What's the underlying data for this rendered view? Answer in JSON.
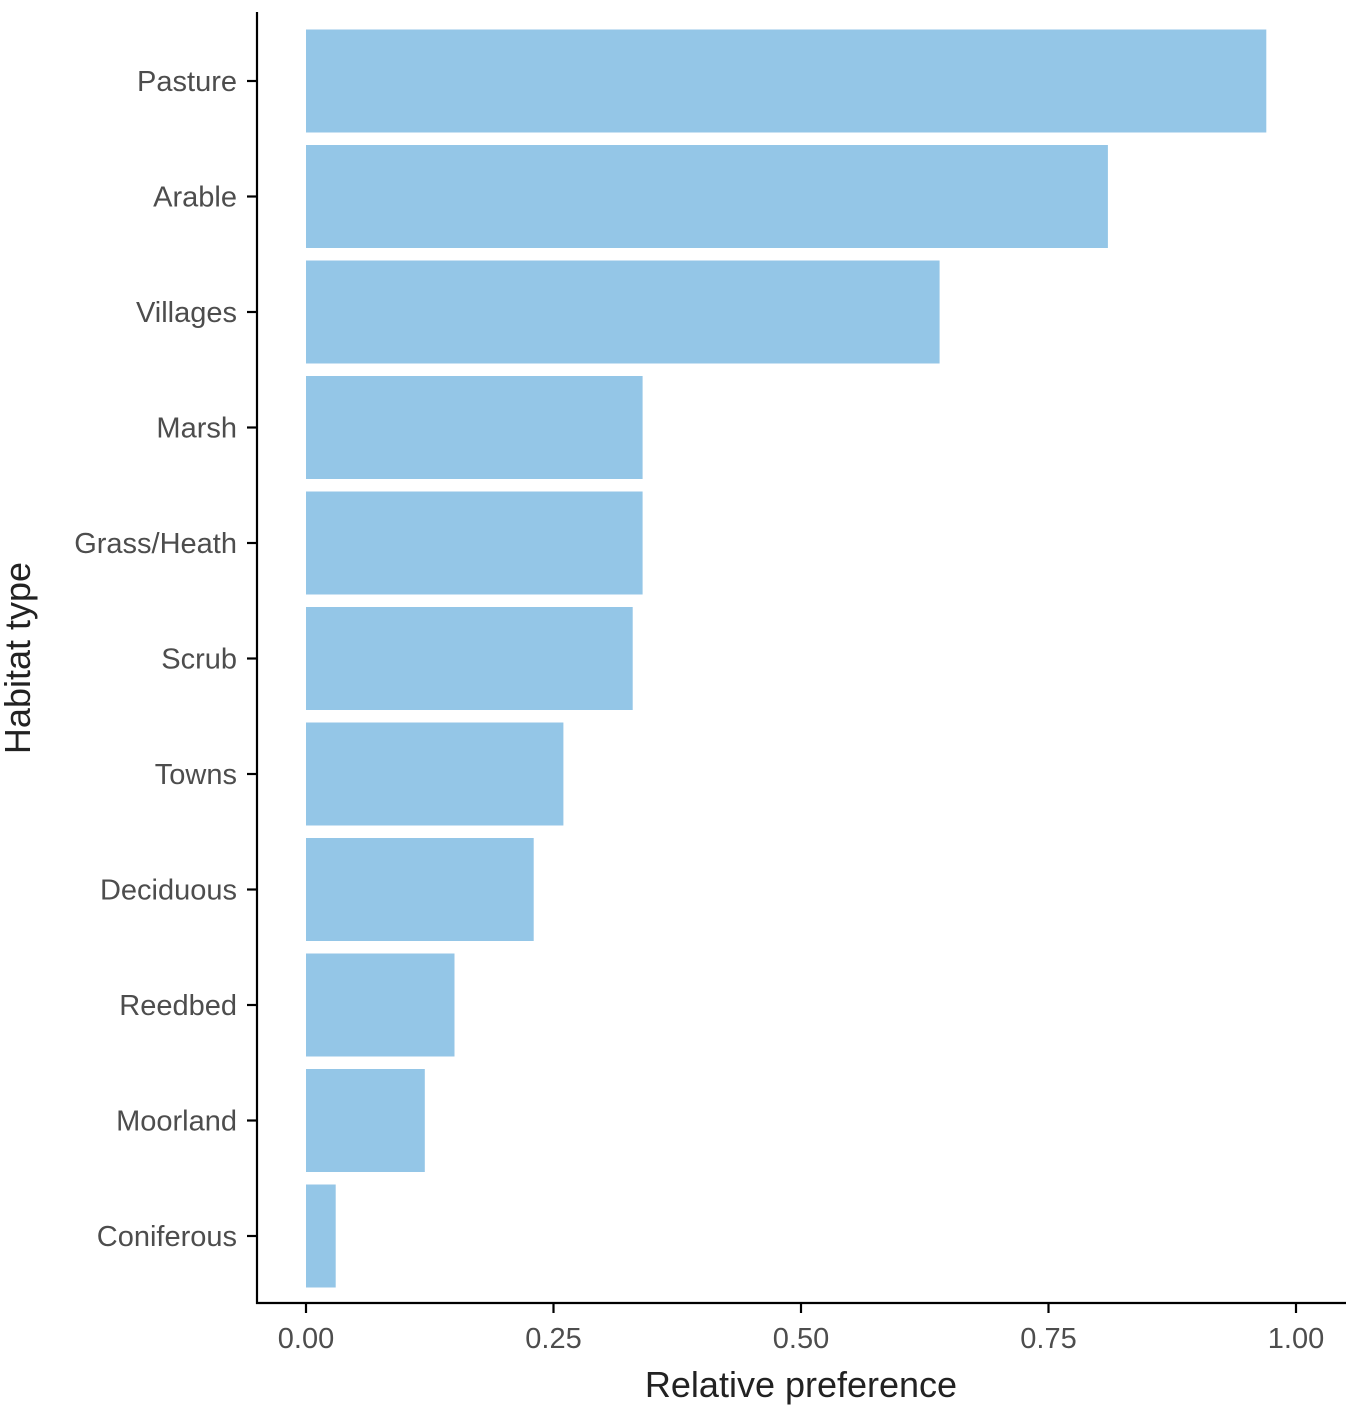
{
  "chart_data": {
    "type": "bar",
    "orientation": "horizontal",
    "xlabel": "Relative preference",
    "ylabel": "Habitat type",
    "categories": [
      "Pasture",
      "Arable",
      "Villages",
      "Marsh",
      "Grass/Heath",
      "Scrub",
      "Towns",
      "Deciduous",
      "Reedbed",
      "Moorland",
      "Coniferous"
    ],
    "values": [
      0.97,
      0.81,
      0.64,
      0.34,
      0.34,
      0.33,
      0.26,
      0.23,
      0.15,
      0.12,
      0.03
    ],
    "xlim": [
      -0.05,
      1.05
    ],
    "x_ticks": [
      "0.00",
      "0.25",
      "0.50",
      "0.75",
      "1.00"
    ],
    "x_tick_values": [
      0,
      0.25,
      0.5,
      0.75,
      1.0
    ],
    "grid": false,
    "bar_color": "#94C6E7"
  }
}
